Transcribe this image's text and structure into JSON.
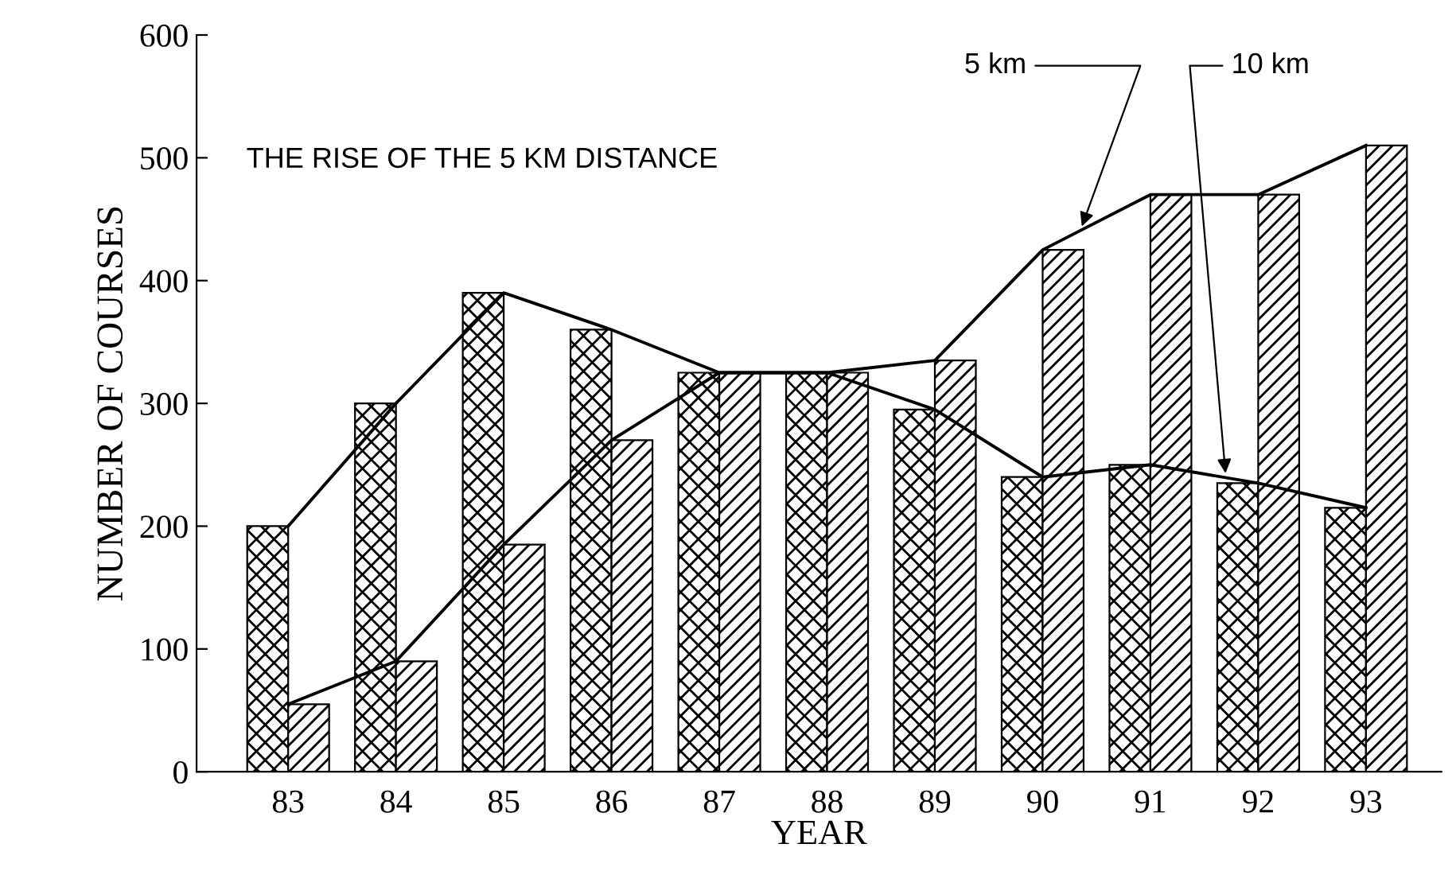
{
  "chart_data": {
    "type": "bar",
    "title": "THE RISE OF THE 5 KM DISTANCE",
    "xlabel": "YEAR",
    "ylabel": "NUMBER OF COURSES",
    "categories": [
      "83",
      "84",
      "85",
      "86",
      "87",
      "88",
      "89",
      "90",
      "91",
      "92",
      "93"
    ],
    "series": [
      {
        "color": "#000000",
        "values": [
          200,
          300,
          390,
          360,
          325,
          325,
          295,
          240,
          250,
          235,
          215
        ]
      },
      {
        "color": "#000000",
        "values": [
          55,
          90,
          185,
          270,
          325,
          325,
          335,
          425,
          470,
          470,
          510
        ]
      },
      {
        "type": "line",
        "name": "10 km",
        "color": "#000000",
        "values": [
          200,
          300,
          390,
          360,
          325,
          325,
          295,
          240,
          250,
          235,
          215
        ]
      },
      {
        "type": "line",
        "name": "5 km",
        "color": "#000000",
        "values": [
          55,
          90,
          185,
          270,
          325,
          325,
          335,
          425,
          470,
          470,
          510
        ]
      }
    ],
    "ylim": [
      0,
      600
    ],
    "yticks": [
      0,
      100,
      200,
      300,
      400,
      500,
      600
    ],
    "grid": false,
    "legend": false,
    "marker": "none",
    "line_style": "solid"
  }
}
